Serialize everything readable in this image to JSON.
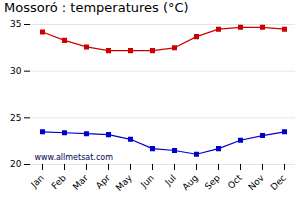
{
  "chart_data": {
    "type": "line",
    "title": "Mossoró : temperatures (°C)",
    "categories": [
      "Jan",
      "Feb",
      "Mar",
      "Apr",
      "May",
      "Jun",
      "Jul",
      "Aug",
      "Sep",
      "Oct",
      "Nov",
      "Dec"
    ],
    "series": [
      {
        "color": "#cc0000",
        "marker": "square",
        "values": [
          34.2,
          33.3,
          32.6,
          32.2,
          32.2,
          32.2,
          32.5,
          33.7,
          34.5,
          34.7,
          34.7,
          34.5
        ]
      },
      {
        "color": "#0000cc",
        "marker": "square",
        "values": [
          23.5,
          23.4,
          23.3,
          23.2,
          22.7,
          21.7,
          21.5,
          21.1,
          21.7,
          22.6,
          23.1,
          23.5
        ]
      }
    ],
    "ylim": [
      20,
      35
    ],
    "yticks": [
      20,
      25,
      30,
      35
    ],
    "grid": true,
    "annotations": [
      {
        "text": "www.allmetsat.com",
        "color": "#000055"
      }
    ]
  }
}
